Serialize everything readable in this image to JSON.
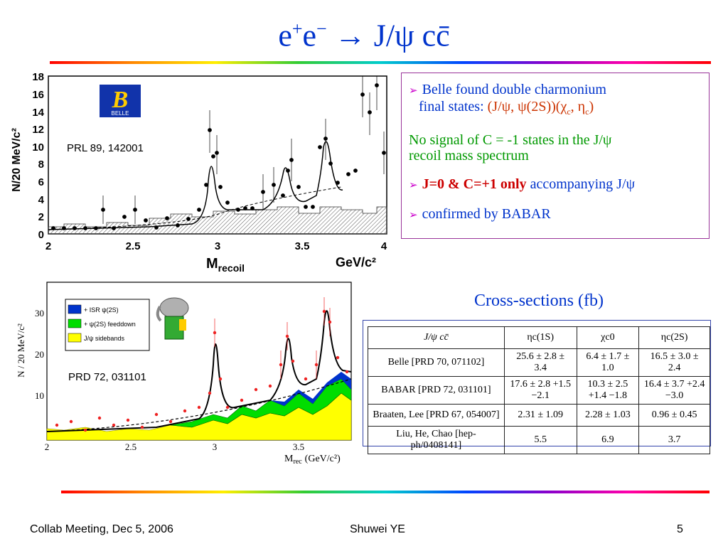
{
  "slide": {
    "title_parts": {
      "e1": "e",
      "sup1": "+",
      "e2": "e",
      "sup2": "−",
      "arrow": "→",
      "rest": "J/ψ cc̄"
    }
  },
  "plot_top": {
    "ref_label": "PRL 89, 142001",
    "ylabel": "N/20 MeV/c²",
    "xlabel_main": "M",
    "xlabel_sub": "recoil",
    "xlabel_units": "GeV/c²",
    "logo_text": "B",
    "logo_sub": "BELLE",
    "y_ticks": [
      "18",
      "16",
      "14",
      "12",
      "10",
      "8",
      "6",
      "4",
      "2",
      "0"
    ],
    "x_ticks": [
      "2",
      "2.5",
      "3",
      "3.5",
      "4"
    ]
  },
  "plot_bottom": {
    "ref_label": "PRD 72, 031101",
    "ylabel": "N / 20 MeV/c²",
    "xlabel": "M",
    "xlabel_sub": "rec",
    "xlabel_units": "(GeV/c²)",
    "legend": [
      "+ ISR ψ(2S)",
      "+ ψ(2S) feeddown",
      "J/ψ sidebands"
    ],
    "legend_colors": [
      "#0033cc",
      "#00dd00",
      "#ffff00"
    ],
    "y_ticks": [
      "30",
      "20",
      "10"
    ],
    "x_ticks": [
      "2",
      "2.5",
      "3",
      "3.5"
    ]
  },
  "textbox": {
    "b1_line1": "Belle found double charmonium",
    "b1_line2_prefix": "final states: ",
    "b1_line2_states": "(J/ψ, ψ(2S))(χ",
    "b1_sub_c": "c",
    "b1_mid": ", η",
    "b1_sub_c2": "c",
    "b1_end": ")",
    "no_signal_line1": "No signal of C = -1 states in the J/ψ",
    "no_signal_line2": "recoil mass spectrum",
    "b2_bold": "J=0 & C=+1 only",
    "b2_rest": " accompanying J/ψ",
    "b3": "confirmed by BABAR"
  },
  "cross_sections": {
    "title": "Cross-sections (fb)",
    "header": [
      "J/ψ cc̄",
      "ηc(1S)",
      "χc0",
      "ηc(2S)"
    ],
    "rows": [
      [
        "Belle [PRD 70, 071102]",
        "25.6 ± 2.8 ± 3.4",
        "6.4 ± 1.7 ± 1.0",
        "16.5 ± 3.0 ± 2.4"
      ],
      [
        "BABAR [PRD 72, 031101]",
        "17.6 ± 2.8 +1.5 −2.1",
        "10.3 ± 2.5 +1.4 −1.8",
        "16.4 ± 3.7 +2.4 −3.0"
      ],
      [
        "Braaten, Lee [PRD 67, 054007]",
        "2.31 ± 1.09",
        "2.28 ± 1.03",
        "0.96 ± 0.45"
      ],
      [
        "Liu, He, Chao [hep-ph/0408141]",
        "5.5",
        "6.9",
        "3.7"
      ]
    ]
  },
  "footer": {
    "left": "Collab Meeting,  Dec 5, 2006",
    "center": "Shuwei YE",
    "right": "5"
  }
}
